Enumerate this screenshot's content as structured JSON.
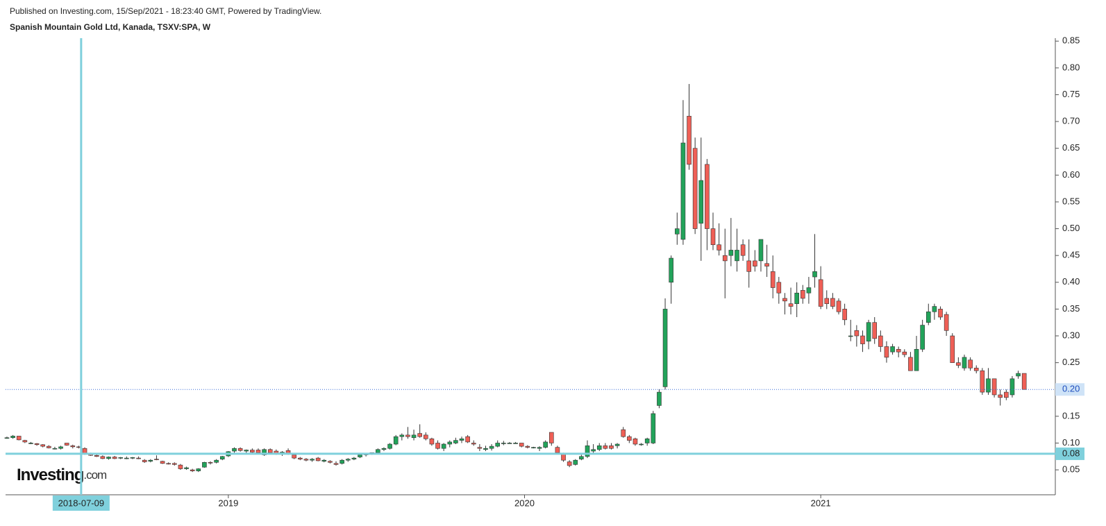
{
  "header": {
    "published": "Published on Investing.com, 15/Sep/2021 - 18:23:40 GMT, Powered by TradingView.",
    "instrument": "Spanish Mountain Gold Ltd, Kanada, TSXV:SPA, W"
  },
  "logo": {
    "brand": "Investing",
    "suffix": ".com"
  },
  "chart_data": {
    "type": "candlestick",
    "up_color": "#22a35a",
    "down_color": "#ef5f56",
    "ohlc": [
      [
        0.11,
        0.112,
        0.108,
        0.11
      ],
      [
        0.11,
        0.115,
        0.108,
        0.113
      ],
      [
        0.113,
        0.113,
        0.105,
        0.106
      ],
      [
        0.105,
        0.106,
        0.1,
        0.102
      ],
      [
        0.1,
        0.102,
        0.098,
        0.1
      ],
      [
        0.099,
        0.1,
        0.095,
        0.097
      ],
      [
        0.097,
        0.098,
        0.092,
        0.094
      ],
      [
        0.094,
        0.096,
        0.09,
        0.091
      ],
      [
        0.09,
        0.093,
        0.088,
        0.09
      ],
      [
        0.09,
        0.095,
        0.088,
        0.093
      ],
      [
        0.1,
        0.1,
        0.095,
        0.096
      ],
      [
        0.095,
        0.097,
        0.09,
        0.093
      ],
      [
        0.093,
        0.095,
        0.09,
        0.092
      ],
      [
        0.09,
        0.092,
        0.078,
        0.08
      ],
      [
        0.08,
        0.082,
        0.076,
        0.077
      ],
      [
        0.077,
        0.08,
        0.074,
        0.075
      ],
      [
        0.075,
        0.077,
        0.07,
        0.071
      ],
      [
        0.071,
        0.075,
        0.069,
        0.074
      ],
      [
        0.074,
        0.076,
        0.07,
        0.071
      ],
      [
        0.072,
        0.074,
        0.07,
        0.073
      ],
      [
        0.072,
        0.075,
        0.07,
        0.072
      ],
      [
        0.072,
        0.074,
        0.07,
        0.073
      ],
      [
        0.072,
        0.075,
        0.07,
        0.071
      ],
      [
        0.068,
        0.07,
        0.063,
        0.065
      ],
      [
        0.066,
        0.07,
        0.064,
        0.068
      ],
      [
        0.07,
        0.077,
        0.068,
        0.069
      ],
      [
        0.066,
        0.067,
        0.061,
        0.062
      ],
      [
        0.062,
        0.064,
        0.06,
        0.061
      ],
      [
        0.062,
        0.064,
        0.058,
        0.06
      ],
      [
        0.059,
        0.061,
        0.05,
        0.052
      ],
      [
        0.052,
        0.056,
        0.05,
        0.054
      ],
      [
        0.05,
        0.052,
        0.046,
        0.048
      ],
      [
        0.048,
        0.053,
        0.046,
        0.052
      ],
      [
        0.055,
        0.065,
        0.054,
        0.064
      ],
      [
        0.064,
        0.066,
        0.06,
        0.063
      ],
      [
        0.064,
        0.07,
        0.062,
        0.068
      ],
      [
        0.07,
        0.076,
        0.068,
        0.075
      ],
      [
        0.076,
        0.085,
        0.074,
        0.084
      ],
      [
        0.085,
        0.092,
        0.082,
        0.09
      ],
      [
        0.09,
        0.092,
        0.084,
        0.086
      ],
      [
        0.085,
        0.088,
        0.08,
        0.087
      ],
      [
        0.087,
        0.09,
        0.082,
        0.083
      ],
      [
        0.087,
        0.09,
        0.08,
        0.082
      ],
      [
        0.078,
        0.09,
        0.076,
        0.088
      ],
      [
        0.088,
        0.09,
        0.08,
        0.082
      ],
      [
        0.085,
        0.088,
        0.078,
        0.08
      ],
      [
        0.08,
        0.085,
        0.076,
        0.083
      ],
      [
        0.086,
        0.09,
        0.078,
        0.08
      ],
      [
        0.078,
        0.08,
        0.07,
        0.072
      ],
      [
        0.072,
        0.074,
        0.068,
        0.07
      ],
      [
        0.07,
        0.072,
        0.066,
        0.068
      ],
      [
        0.068,
        0.072,
        0.065,
        0.07
      ],
      [
        0.072,
        0.074,
        0.066,
        0.067
      ],
      [
        0.066,
        0.07,
        0.064,
        0.068
      ],
      [
        0.066,
        0.068,
        0.062,
        0.064
      ],
      [
        0.062,
        0.066,
        0.058,
        0.06
      ],
      [
        0.062,
        0.07,
        0.06,
        0.068
      ],
      [
        0.068,
        0.072,
        0.065,
        0.07
      ],
      [
        0.07,
        0.074,
        0.068,
        0.072
      ],
      [
        0.074,
        0.08,
        0.072,
        0.078
      ],
      [
        0.078,
        0.08,
        0.075,
        0.08
      ],
      [
        0.08,
        0.082,
        0.078,
        0.082
      ],
      [
        0.082,
        0.09,
        0.08,
        0.088
      ],
      [
        0.088,
        0.092,
        0.085,
        0.09
      ],
      [
        0.09,
        0.1,
        0.088,
        0.098
      ],
      [
        0.098,
        0.115,
        0.096,
        0.112
      ],
      [
        0.112,
        0.118,
        0.105,
        0.115
      ],
      [
        0.115,
        0.13,
        0.108,
        0.112
      ],
      [
        0.11,
        0.125,
        0.105,
        0.115
      ],
      [
        0.118,
        0.135,
        0.11,
        0.112
      ],
      [
        0.115,
        0.12,
        0.105,
        0.108
      ],
      [
        0.108,
        0.11,
        0.095,
        0.098
      ],
      [
        0.1,
        0.105,
        0.088,
        0.09
      ],
      [
        0.09,
        0.1,
        0.085,
        0.098
      ],
      [
        0.098,
        0.105,
        0.092,
        0.102
      ],
      [
        0.1,
        0.11,
        0.098,
        0.105
      ],
      [
        0.105,
        0.112,
        0.1,
        0.108
      ],
      [
        0.112,
        0.115,
        0.1,
        0.102
      ],
      [
        0.1,
        0.105,
        0.095,
        0.098
      ],
      [
        0.092,
        0.098,
        0.085,
        0.09
      ],
      [
        0.088,
        0.095,
        0.085,
        0.09
      ],
      [
        0.09,
        0.098,
        0.086,
        0.094
      ],
      [
        0.094,
        0.105,
        0.092,
        0.1
      ],
      [
        0.1,
        0.104,
        0.096,
        0.1
      ],
      [
        0.1,
        0.102,
        0.1,
        0.1
      ],
      [
        0.1,
        0.102,
        0.1,
        0.1
      ],
      [
        0.1,
        0.1,
        0.092,
        0.094
      ],
      [
        0.094,
        0.096,
        0.09,
        0.092
      ],
      [
        0.092,
        0.093,
        0.09,
        0.092
      ],
      [
        0.09,
        0.094,
        0.085,
        0.092
      ],
      [
        0.092,
        0.105,
        0.09,
        0.102
      ],
      [
        0.12,
        0.12,
        0.095,
        0.1
      ],
      [
        0.092,
        0.095,
        0.08,
        0.082
      ],
      [
        0.08,
        0.082,
        0.065,
        0.068
      ],
      [
        0.065,
        0.068,
        0.055,
        0.058
      ],
      [
        0.06,
        0.07,
        0.058,
        0.068
      ],
      [
        0.07,
        0.078,
        0.068,
        0.075
      ],
      [
        0.075,
        0.105,
        0.072,
        0.095
      ],
      [
        0.085,
        0.098,
        0.08,
        0.088
      ],
      [
        0.088,
        0.1,
        0.085,
        0.095
      ],
      [
        0.095,
        0.1,
        0.088,
        0.09
      ],
      [
        0.095,
        0.1,
        0.088,
        0.09
      ],
      [
        0.095,
        0.1,
        0.09,
        0.098
      ],
      [
        0.125,
        0.13,
        0.11,
        0.112
      ],
      [
        0.112,
        0.115,
        0.1,
        0.105
      ],
      [
        0.108,
        0.11,
        0.095,
        0.098
      ],
      [
        0.098,
        0.1,
        0.095,
        0.098
      ],
      [
        0.1,
        0.11,
        0.095,
        0.108
      ],
      [
        0.1,
        0.16,
        0.098,
        0.155
      ],
      [
        0.17,
        0.2,
        0.165,
        0.195
      ],
      [
        0.205,
        0.37,
        0.2,
        0.35
      ],
      [
        0.4,
        0.45,
        0.36,
        0.445
      ],
      [
        0.49,
        0.53,
        0.47,
        0.5
      ],
      [
        0.48,
        0.74,
        0.47,
        0.66
      ],
      [
        0.71,
        0.77,
        0.61,
        0.62
      ],
      [
        0.65,
        0.67,
        0.49,
        0.5
      ],
      [
        0.51,
        0.67,
        0.44,
        0.59
      ],
      [
        0.62,
        0.63,
        0.46,
        0.5
      ],
      [
        0.5,
        0.53,
        0.46,
        0.47
      ],
      [
        0.47,
        0.51,
        0.45,
        0.46
      ],
      [
        0.45,
        0.5,
        0.37,
        0.44
      ],
      [
        0.45,
        0.52,
        0.43,
        0.46
      ],
      [
        0.44,
        0.5,
        0.42,
        0.46
      ],
      [
        0.47,
        0.48,
        0.44,
        0.45
      ],
      [
        0.44,
        0.48,
        0.39,
        0.42
      ],
      [
        0.44,
        0.46,
        0.42,
        0.43
      ],
      [
        0.44,
        0.48,
        0.42,
        0.48
      ],
      [
        0.435,
        0.47,
        0.41,
        0.43
      ],
      [
        0.42,
        0.45,
        0.37,
        0.39
      ],
      [
        0.4,
        0.41,
        0.36,
        0.38
      ],
      [
        0.37,
        0.38,
        0.34,
        0.365
      ],
      [
        0.36,
        0.39,
        0.34,
        0.355
      ],
      [
        0.36,
        0.4,
        0.335,
        0.38
      ],
      [
        0.385,
        0.395,
        0.36,
        0.37
      ],
      [
        0.38,
        0.41,
        0.36,
        0.39
      ],
      [
        0.41,
        0.49,
        0.39,
        0.42
      ],
      [
        0.405,
        0.43,
        0.35,
        0.355
      ],
      [
        0.37,
        0.385,
        0.35,
        0.36
      ],
      [
        0.37,
        0.38,
        0.35,
        0.355
      ],
      [
        0.365,
        0.37,
        0.34,
        0.345
      ],
      [
        0.35,
        0.36,
        0.32,
        0.33
      ],
      [
        0.3,
        0.33,
        0.29,
        0.3
      ],
      [
        0.31,
        0.32,
        0.28,
        0.3
      ],
      [
        0.3,
        0.31,
        0.27,
        0.285
      ],
      [
        0.29,
        0.33,
        0.275,
        0.325
      ],
      [
        0.325,
        0.335,
        0.285,
        0.295
      ],
      [
        0.3,
        0.31,
        0.27,
        0.28
      ],
      [
        0.28,
        0.29,
        0.25,
        0.26
      ],
      [
        0.27,
        0.285,
        0.265,
        0.28
      ],
      [
        0.275,
        0.28,
        0.26,
        0.27
      ],
      [
        0.27,
        0.275,
        0.26,
        0.265
      ],
      [
        0.26,
        0.27,
        0.235,
        0.235
      ],
      [
        0.235,
        0.3,
        0.235,
        0.275
      ],
      [
        0.275,
        0.33,
        0.27,
        0.32
      ],
      [
        0.325,
        0.36,
        0.32,
        0.345
      ],
      [
        0.345,
        0.36,
        0.33,
        0.355
      ],
      [
        0.35,
        0.355,
        0.33,
        0.335
      ],
      [
        0.34,
        0.345,
        0.3,
        0.31
      ],
      [
        0.3,
        0.305,
        0.25,
        0.25
      ],
      [
        0.25,
        0.26,
        0.24,
        0.245
      ],
      [
        0.24,
        0.265,
        0.235,
        0.26
      ],
      [
        0.255,
        0.26,
        0.235,
        0.24
      ],
      [
        0.24,
        0.245,
        0.23,
        0.235
      ],
      [
        0.235,
        0.24,
        0.19,
        0.195
      ],
      [
        0.195,
        0.24,
        0.19,
        0.22
      ],
      [
        0.22,
        0.22,
        0.185,
        0.19
      ],
      [
        0.19,
        0.2,
        0.17,
        0.185
      ],
      [
        0.195,
        0.2,
        0.18,
        0.185
      ],
      [
        0.19,
        0.225,
        0.185,
        0.22
      ],
      [
        0.225,
        0.235,
        0.22,
        0.23
      ],
      [
        0.23,
        0.23,
        0.2,
        0.2
      ]
    ],
    "xlim": [
      -0.23,
      175.2
    ],
    "xticks": [
      {
        "value": 37,
        "label": "2019"
      },
      {
        "value": 86.5,
        "label": "2020"
      },
      {
        "value": 136,
        "label": "2021"
      }
    ],
    "ylim": [
      0.0035,
      0.8555
    ],
    "yticks": [
      {
        "value": 0.05,
        "label": "0.05"
      },
      {
        "value": 0.1,
        "label": "0.10"
      },
      {
        "value": 0.15,
        "label": "0.15"
      },
      {
        "value": 0.2,
        "label": "0.20"
      },
      {
        "value": 0.25,
        "label": "0.25"
      },
      {
        "value": 0.3,
        "label": "0.30"
      },
      {
        "value": 0.35,
        "label": "0.35"
      },
      {
        "value": 0.4,
        "label": "0.40"
      },
      {
        "value": 0.45,
        "label": "0.45"
      },
      {
        "value": 0.5,
        "label": "0.50"
      },
      {
        "value": 0.55,
        "label": "0.55"
      },
      {
        "value": 0.6,
        "label": "0.60"
      },
      {
        "value": 0.65,
        "label": "0.65"
      },
      {
        "value": 0.7,
        "label": "0.70"
      },
      {
        "value": 0.75,
        "label": "0.75"
      },
      {
        "value": 0.8,
        "label": "0.80"
      },
      {
        "value": 0.85,
        "label": "0.85"
      }
    ],
    "crosshair": {
      "x": {
        "value": 12.4,
        "label": "2018-07-09"
      },
      "y": {
        "value": 0.08,
        "label": "0.08"
      }
    },
    "last_price": {
      "value": 0.2,
      "label": "0.20"
    }
  }
}
